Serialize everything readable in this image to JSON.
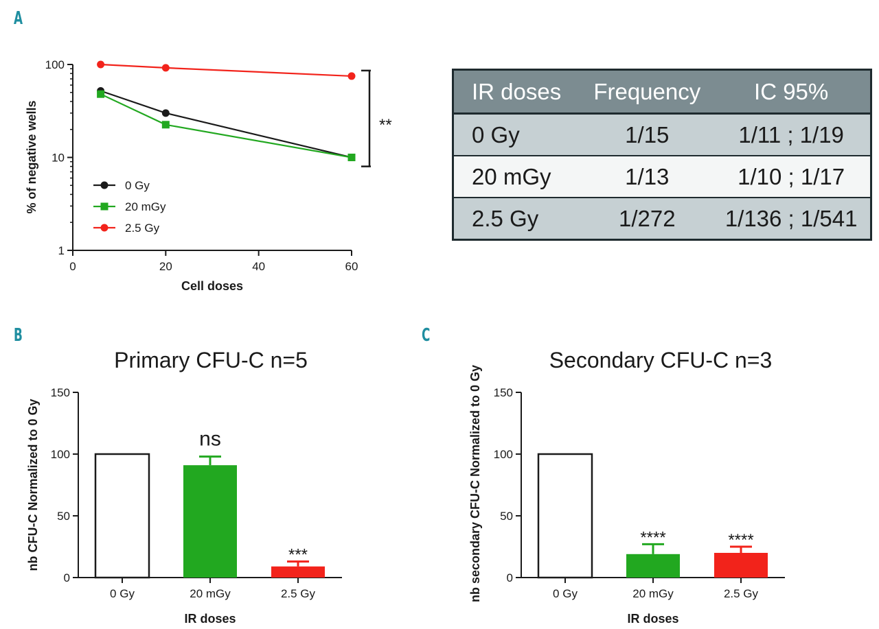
{
  "panels": {
    "a": "A",
    "b": "B",
    "c": "C"
  },
  "colors": {
    "black": "#1a1a1a",
    "green": "#22a820",
    "red": "#f2231b",
    "table_header": "#7c8c91",
    "table_shade": "#c6d0d3"
  },
  "chart_data": [
    {
      "id": "A",
      "type": "line",
      "title": "",
      "xlabel": "Cell doses",
      "ylabel": "% of negative wells",
      "yscale": "log",
      "xlim": [
        0,
        60
      ],
      "ylim": [
        1,
        100
      ],
      "x_ticks": [
        0,
        20,
        40,
        60
      ],
      "y_ticks": [
        1,
        10,
        100
      ],
      "series": [
        {
          "name": "0 Gy",
          "marker": "circle",
          "color": "#1a1a1a",
          "x": [
            6,
            20,
            60
          ],
          "y": [
            52,
            30,
            10
          ]
        },
        {
          "name": "20 mGy",
          "marker": "square",
          "color": "#22a820",
          "x": [
            6,
            20,
            60
          ],
          "y": [
            48,
            22.5,
            10
          ]
        },
        {
          "name": "2.5 Gy",
          "marker": "circle",
          "color": "#f2231b",
          "x": [
            6,
            20,
            60
          ],
          "y": [
            100,
            92,
            75
          ]
        }
      ],
      "annotation": {
        "text": "**",
        "y_range": [
          8,
          86
        ]
      },
      "legend": "bottom-left"
    },
    {
      "id": "B",
      "type": "bar",
      "title": "Primary CFU-C n=5",
      "xlabel": "IR doses",
      "ylabel": "nb CFU-C Normalized to 0 Gy",
      "categories": [
        "0 Gy",
        "20 mGy",
        "2.5 Gy"
      ],
      "values": [
        100,
        91,
        9
      ],
      "errors": [
        0,
        7,
        4
      ],
      "fills": [
        "#ffffff",
        "#22a820",
        "#f2231b"
      ],
      "significance": [
        "",
        "ns",
        "***"
      ],
      "ylim": [
        0,
        150
      ],
      "y_ticks": [
        0,
        50,
        100,
        150
      ]
    },
    {
      "id": "C",
      "type": "bar",
      "title": "Secondary CFU-C n=3",
      "xlabel": "IR doses",
      "ylabel": "nb secondary CFU-C Normalized to 0 Gy",
      "categories": [
        "0 Gy",
        "20 mGy",
        "2.5 Gy"
      ],
      "values": [
        100,
        19,
        20
      ],
      "errors": [
        0,
        8,
        5
      ],
      "fills": [
        "#ffffff",
        "#22a820",
        "#f2231b"
      ],
      "significance": [
        "",
        "****",
        "****"
      ],
      "ylim": [
        0,
        150
      ],
      "y_ticks": [
        0,
        50,
        100,
        150
      ]
    }
  ],
  "table": {
    "headers": [
      "IR doses",
      "Frequency",
      "IC 95%"
    ],
    "rows": [
      [
        "0 Gy",
        "1/15",
        "1/11 ; 1/19"
      ],
      [
        "20 mGy",
        "1/13",
        "1/10 ; 1/17"
      ],
      [
        "2.5 Gy",
        "1/272",
        "1/136 ; 1/541"
      ]
    ]
  }
}
